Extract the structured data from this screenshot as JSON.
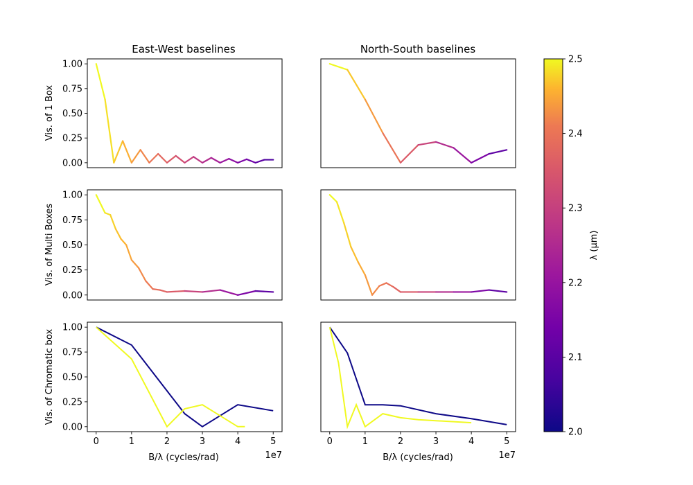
{
  "figure": {
    "col_titles": [
      "East-West baselines",
      "North-South baselines"
    ],
    "row_ylabels": [
      "Vis. of 1 Box",
      "Vis. of Multi Boxes",
      "Vis. of Chromatic box"
    ],
    "xlabel": "B/λ (cycles/rad)",
    "x_exponent": "1e7"
  },
  "colorbar": {
    "label": "λ (μm)",
    "colormap": "plasma",
    "range": [
      2.0,
      2.5
    ],
    "ticks": [
      "2.0",
      "2.1",
      "2.2",
      "2.3",
      "2.4",
      "2.5"
    ]
  },
  "chart_data": [
    {
      "type": "line",
      "title": "East-West baselines",
      "ylabel": "Vis. of 1 Box",
      "xlim": [
        -0.25,
        5.25
      ],
      "ylim": [
        -0.05,
        1.05
      ],
      "x_scale": "1e7",
      "xticks": [],
      "yticks": [
        "0.00",
        "0.25",
        "0.50",
        "0.75",
        "1.00"
      ],
      "series": [
        {
          "x": [
            0.0,
            0.25,
            0.5,
            0.75,
            1.0,
            1.25,
            1.5,
            1.75,
            2.0,
            2.25,
            2.5,
            2.75,
            3.0,
            3.25,
            3.5,
            3.75,
            4.0,
            4.25,
            4.5,
            4.75,
            5.0
          ],
          "y": [
            1.0,
            0.64,
            0.0,
            0.22,
            0.0,
            0.13,
            0.0,
            0.09,
            0.0,
            0.07,
            0.0,
            0.06,
            0.0,
            0.05,
            0.0,
            0.04,
            0.0,
            0.035,
            0.0,
            0.03,
            0.03
          ]
        }
      ]
    },
    {
      "type": "line",
      "title": "North-South baselines",
      "ylabel": "",
      "xlim": [
        -0.25,
        5.25
      ],
      "ylim": [
        -0.05,
        1.05
      ],
      "x_scale": "1e7",
      "xticks": [],
      "yticks": [],
      "series": [
        {
          "x": [
            0.0,
            0.5,
            1.0,
            1.5,
            2.0,
            2.5,
            3.0,
            3.5,
            4.0,
            4.5,
            5.0
          ],
          "y": [
            1.0,
            0.94,
            0.64,
            0.3,
            0.0,
            0.18,
            0.21,
            0.15,
            0.0,
            0.09,
            0.13
          ]
        }
      ]
    },
    {
      "type": "line",
      "title": "",
      "ylabel": "Vis. of Multi Boxes",
      "xlim": [
        -0.25,
        5.25
      ],
      "ylim": [
        -0.05,
        1.05
      ],
      "x_scale": "1e7",
      "xticks": [],
      "yticks": [
        "0.00",
        "0.25",
        "0.50",
        "0.75",
        "1.00"
      ],
      "series": [
        {
          "x": [
            0.0,
            0.25,
            0.4,
            0.55,
            0.7,
            0.85,
            1.0,
            1.2,
            1.4,
            1.6,
            1.8,
            2.0,
            2.5,
            3.0,
            3.5,
            4.0,
            4.5,
            5.0
          ],
          "y": [
            1.0,
            0.82,
            0.8,
            0.66,
            0.56,
            0.5,
            0.35,
            0.27,
            0.14,
            0.06,
            0.05,
            0.03,
            0.04,
            0.03,
            0.05,
            0.0,
            0.04,
            0.03
          ]
        }
      ]
    },
    {
      "type": "line",
      "title": "",
      "ylabel": "",
      "xlim": [
        -0.25,
        5.25
      ],
      "ylim": [
        -0.05,
        1.05
      ],
      "x_scale": "1e7",
      "xticks": [],
      "yticks": [],
      "series": [
        {
          "x": [
            0.0,
            0.2,
            0.4,
            0.6,
            0.8,
            1.0,
            1.2,
            1.4,
            1.6,
            1.8,
            2.0,
            2.5,
            3.0,
            3.5,
            4.0,
            4.5,
            5.0
          ],
          "y": [
            1.0,
            0.93,
            0.72,
            0.48,
            0.33,
            0.2,
            0.0,
            0.09,
            0.12,
            0.08,
            0.03,
            0.03,
            0.03,
            0.03,
            0.03,
            0.05,
            0.03
          ]
        }
      ]
    },
    {
      "type": "line",
      "title": "",
      "ylabel": "Vis. of Chromatic box",
      "xlabel": "B/λ (cycles/rad)",
      "xlim": [
        -0.25,
        5.25
      ],
      "ylim": [
        -0.05,
        1.05
      ],
      "x_scale": "1e7",
      "xticks": [
        "0",
        "1",
        "2",
        "3",
        "4",
        "5"
      ],
      "yticks": [
        "0.00",
        "0.25",
        "0.50",
        "0.75",
        "1.00"
      ],
      "series": [
        {
          "name": "",
          "lambda": 2.0,
          "x": [
            0.0,
            1.0,
            2.0,
            2.5,
            3.0,
            4.0,
            5.0
          ],
          "y": [
            1.0,
            0.82,
            0.36,
            0.13,
            0.0,
            0.22,
            0.16
          ]
        },
        {
          "name": "",
          "lambda": 2.5,
          "x": [
            0.0,
            1.0,
            2.0,
            2.5,
            3.0,
            4.0,
            4.2
          ],
          "y": [
            1.0,
            0.68,
            0.0,
            0.18,
            0.22,
            0.0,
            0.0
          ]
        }
      ]
    },
    {
      "type": "line",
      "title": "",
      "ylabel": "",
      "xlabel": "B/λ (cycles/rad)",
      "xlim": [
        -0.25,
        5.25
      ],
      "ylim": [
        -0.05,
        1.05
      ],
      "x_scale": "1e7",
      "xticks": [
        "0",
        "1",
        "2",
        "3",
        "4",
        "5"
      ],
      "yticks": [],
      "series": [
        {
          "name": "",
          "lambda": 2.0,
          "x": [
            0.0,
            0.5,
            1.0,
            1.5,
            2.0,
            3.0,
            4.0,
            5.0
          ],
          "y": [
            1.0,
            0.74,
            0.22,
            0.22,
            0.21,
            0.13,
            0.08,
            0.02
          ]
        },
        {
          "name": "",
          "lambda": 2.5,
          "x": [
            0.0,
            0.25,
            0.5,
            0.75,
            1.0,
            1.5,
            2.0,
            2.5,
            3.0,
            3.5,
            4.0
          ],
          "y": [
            1.0,
            0.64,
            0.0,
            0.22,
            0.0,
            0.13,
            0.09,
            0.07,
            0.06,
            0.05,
            0.04
          ]
        }
      ]
    }
  ]
}
